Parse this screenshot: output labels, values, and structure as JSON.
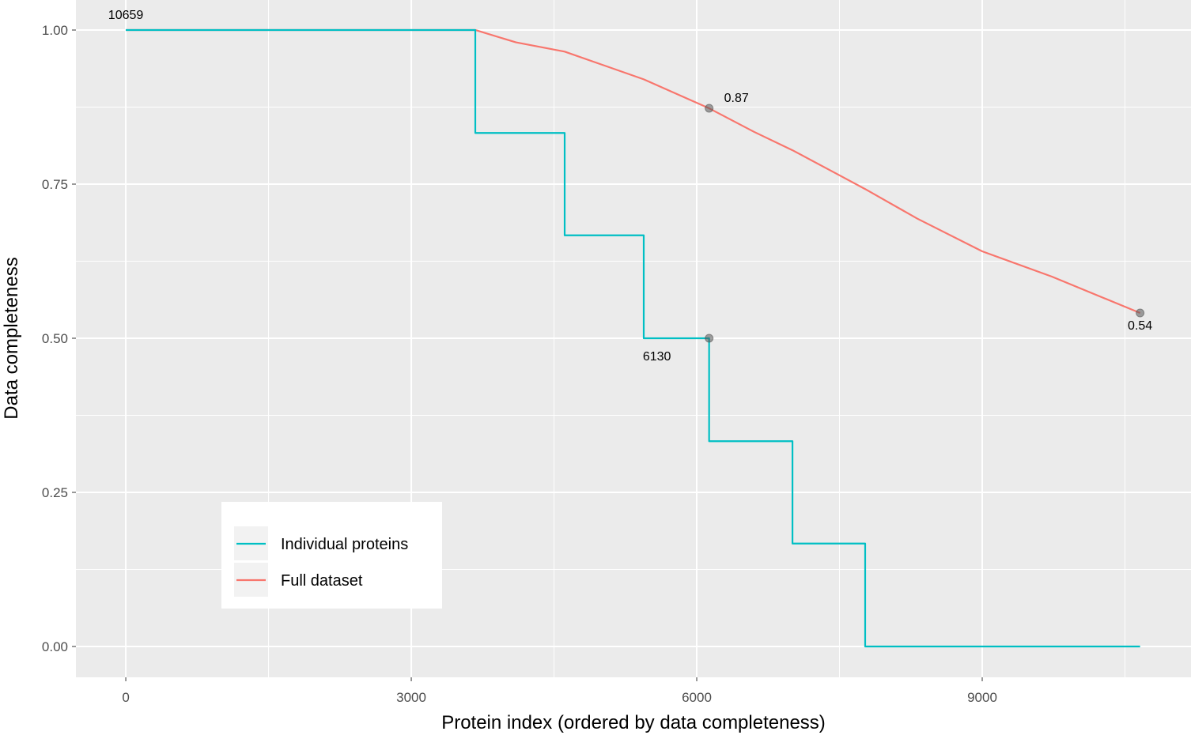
{
  "chart_data": {
    "type": "line",
    "title": "",
    "xlabel": "Protein index (ordered by data completeness)",
    "ylabel": "Data completeness",
    "xlim": [
      -524,
      11194
    ],
    "ylim": [
      -0.05,
      1.0487
    ],
    "x_ticks": [
      0,
      3000,
      6000,
      9000
    ],
    "x_tick_labels": [
      "0",
      "3000",
      "6000",
      "9000"
    ],
    "x_minor": [
      1500,
      4500,
      7500,
      10500
    ],
    "y_ticks": [
      0,
      0.25,
      0.5,
      0.75,
      1.0
    ],
    "y_tick_labels": [
      "0.00",
      "0.25",
      "0.50",
      "0.75",
      "1.00"
    ],
    "y_minor": [
      0.125,
      0.375,
      0.625,
      0.875
    ],
    "grid": true,
    "legend_position": "bottom-left inside",
    "series": [
      {
        "name": "Individual proteins",
        "color": "#00BFC4",
        "step": true,
        "x": [
          0,
          3673,
          4612,
          5443,
          6130,
          7006,
          7770,
          10659
        ],
        "y": [
          1.0,
          0.833,
          0.667,
          0.5,
          0.333,
          0.167,
          0.0,
          0.0
        ]
      },
      {
        "name": "Full dataset",
        "color": "#F8766D",
        "step": false,
        "x": [
          0,
          3673,
          4100,
          4612,
          5443,
          6130,
          6600,
          7006,
          7504,
          7770,
          8319,
          9000,
          9732,
          10659
        ],
        "y": [
          1.0,
          1.0,
          0.98,
          0.965,
          0.92,
          0.873,
          0.835,
          0.805,
          0.764,
          0.742,
          0.694,
          0.641,
          0.6,
          0.541
        ]
      }
    ],
    "points": [
      {
        "x": 6130,
        "y": 0.873
      },
      {
        "x": 10659,
        "y": 0.541
      },
      {
        "x": 6130,
        "y": 0.5
      }
    ],
    "annotations": [
      {
        "text": "10659",
        "x": 0,
        "y": 1.0,
        "pos": "above",
        "color": "#999999"
      },
      {
        "text": "0.87",
        "x": 6130,
        "y": 0.873,
        "pos": "above-right",
        "color": "#000000"
      },
      {
        "text": "0.54",
        "x": 10659,
        "y": 0.541,
        "pos": "below",
        "color": "#000000"
      },
      {
        "text": "6130",
        "x": 6130,
        "y": 0.5,
        "pos": "below-left",
        "color": "#000000"
      }
    ],
    "legend": [
      "Individual proteins",
      "Full dataset"
    ]
  }
}
